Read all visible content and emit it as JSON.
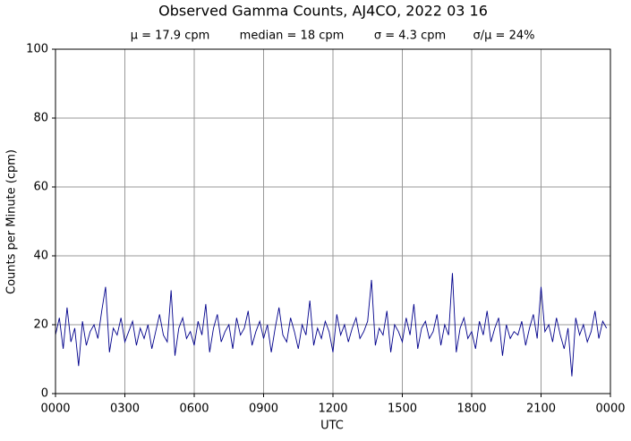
{
  "chart_data": {
    "type": "line",
    "title": "Observed Gamma Counts, AJ4CO, 2022 03 16",
    "annotations": [
      "μ = 17.9 cpm",
      "median = 18 cpm",
      "σ = 4.3 cpm",
      "σ/μ = 24%"
    ],
    "xlabel": "UTC",
    "ylabel": "Counts per Minute (cpm)",
    "xlim": [
      0,
      1440
    ],
    "ylim": [
      0,
      100
    ],
    "xticks": [
      {
        "value": 0,
        "label": "0000"
      },
      {
        "value": 180,
        "label": "0300"
      },
      {
        "value": 360,
        "label": "0600"
      },
      {
        "value": 540,
        "label": "0900"
      },
      {
        "value": 720,
        "label": "1200"
      },
      {
        "value": 900,
        "label": "1500"
      },
      {
        "value": 1080,
        "label": "1800"
      },
      {
        "value": 1260,
        "label": "2100"
      },
      {
        "value": 1440,
        "label": "0000"
      }
    ],
    "yticks": [
      0,
      20,
      40,
      60,
      80,
      100
    ],
    "grid": true,
    "x": [
      0,
      10,
      20,
      30,
      40,
      50,
      60,
      70,
      80,
      90,
      100,
      110,
      120,
      130,
      140,
      150,
      160,
      170,
      180,
      190,
      200,
      210,
      220,
      230,
      240,
      250,
      260,
      270,
      280,
      290,
      300,
      310,
      320,
      330,
      340,
      350,
      360,
      370,
      380,
      390,
      400,
      410,
      420,
      430,
      440,
      450,
      460,
      470,
      480,
      490,
      500,
      510,
      520,
      530,
      540,
      550,
      560,
      570,
      580,
      590,
      600,
      610,
      620,
      630,
      640,
      650,
      660,
      670,
      680,
      690,
      700,
      710,
      720,
      730,
      740,
      750,
      760,
      770,
      780,
      790,
      800,
      810,
      820,
      830,
      840,
      850,
      860,
      870,
      880,
      890,
      900,
      910,
      920,
      930,
      940,
      950,
      960,
      970,
      980,
      990,
      1000,
      1010,
      1020,
      1030,
      1040,
      1050,
      1060,
      1070,
      1080,
      1090,
      1100,
      1110,
      1120,
      1130,
      1140,
      1150,
      1160,
      1170,
      1180,
      1190,
      1200,
      1210,
      1220,
      1230,
      1240,
      1250,
      1260,
      1270,
      1280,
      1290,
      1300,
      1310,
      1320,
      1330,
      1340,
      1350,
      1360,
      1370,
      1380,
      1390,
      1400,
      1410,
      1420,
      1430
    ],
    "series": [
      {
        "color": "#00008b",
        "values": [
          17,
          22,
          13,
          25,
          15,
          19,
          8,
          21,
          14,
          18,
          20,
          16,
          24,
          31,
          12,
          19,
          17,
          22,
          15,
          18,
          21,
          14,
          19,
          16,
          20,
          13,
          18,
          23,
          17,
          15,
          30,
          11,
          19,
          22,
          16,
          18,
          14,
          21,
          17,
          26,
          12,
          19,
          23,
          15,
          18,
          20,
          13,
          22,
          17,
          19,
          24,
          14,
          18,
          21,
          16,
          20,
          12,
          19,
          25,
          17,
          15,
          22,
          18,
          13,
          20,
          17,
          27,
          14,
          19,
          16,
          21,
          18,
          12,
          23,
          17,
          20,
          15,
          19,
          22,
          16,
          18,
          21,
          33,
          14,
          19,
          17,
          24,
          12,
          20,
          18,
          15,
          22,
          17,
          26,
          13,
          19,
          21,
          16,
          18,
          23,
          14,
          20,
          17,
          35,
          12,
          19,
          22,
          16,
          18,
          13,
          21,
          17,
          24,
          15,
          19,
          22,
          11,
          20,
          16,
          18,
          17,
          21,
          14,
          19,
          23,
          16,
          31,
          18,
          20,
          15,
          22,
          17,
          13,
          19,
          5,
          22,
          17,
          20,
          15,
          18,
          24,
          16,
          21,
          19
        ]
      }
    ]
  }
}
